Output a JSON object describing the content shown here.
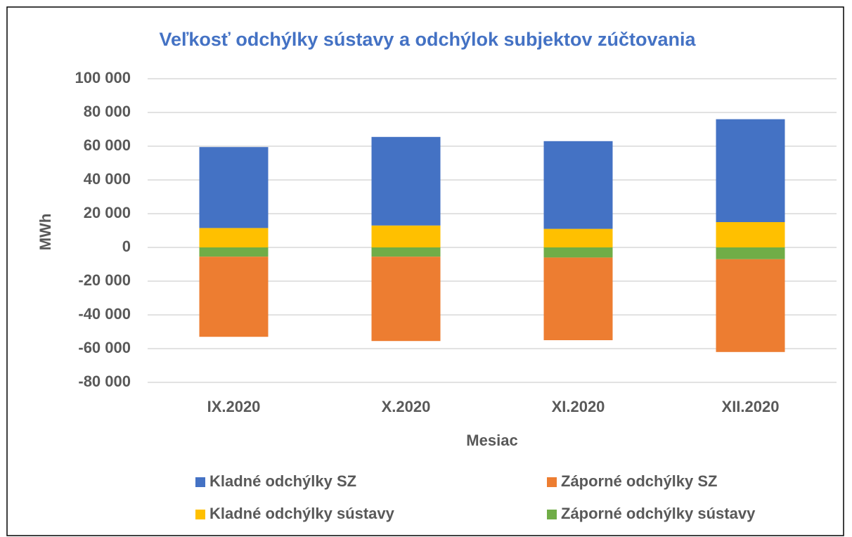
{
  "chart_data": {
    "type": "stacked_bar",
    "title": "Veľkosť odchýlky sústavy a odchýlok subjektov zúčtovania",
    "x_label": "Mesiac",
    "y_label": "MWh",
    "categories": [
      "IX.2020",
      "X.2020",
      "XI.2020",
      "XII.2020"
    ],
    "series": [
      {
        "name": "Kladné odchýlky sústavy",
        "color": "#ffc000",
        "values": [
          11500,
          13000,
          11000,
          15000
        ]
      },
      {
        "name": "Záporné odchýlky sústavy",
        "color": "#70ad47",
        "values": [
          -5500,
          -5500,
          -6000,
          -7000
        ]
      },
      {
        "name": "Kladné odchýlky SZ",
        "color": "#4472c4",
        "values": [
          48000,
          52500,
          52000,
          61000
        ]
      },
      {
        "name": "Záporné odchýlky SZ",
        "color": "#ed7d31",
        "values": [
          -47500,
          -50000,
          -49000,
          -55000
        ]
      }
    ],
    "ylim": [
      -80000,
      100000
    ],
    "yticks": [
      {
        "value": -80000,
        "label": "-80 000"
      },
      {
        "value": -60000,
        "label": "-60 000"
      },
      {
        "value": -40000,
        "label": "-40 000"
      },
      {
        "value": -20000,
        "label": "-20 000"
      },
      0,
      {
        "value": 20000,
        "label": "20 000"
      },
      {
        "value": 40000,
        "label": "40 000"
      },
      {
        "value": 60000,
        "label": "60 000"
      },
      {
        "value": 80000,
        "label": "80 000"
      },
      {
        "value": 100000,
        "label": "100 000"
      }
    ],
    "grid": true,
    "legend": "bottom"
  }
}
